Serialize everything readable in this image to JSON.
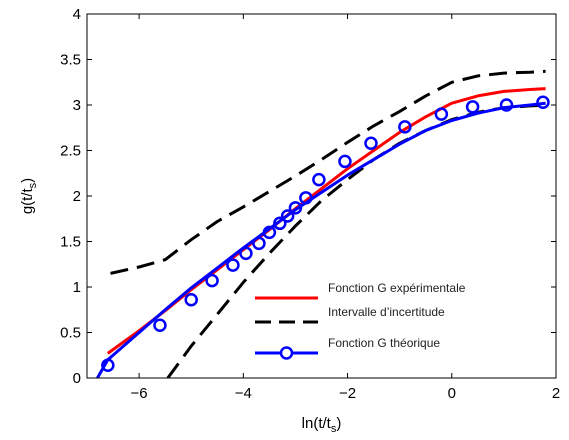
{
  "chart_data": {
    "type": "line",
    "title": "",
    "xlabel": {
      "base": "ln(t/t",
      "sub": "s",
      "tail": ")"
    },
    "ylabel": {
      "base": "g(t/t",
      "sub": "s",
      "tail": ")"
    },
    "xlim": [
      -7,
      2
    ],
    "ylim": [
      0,
      4
    ],
    "xticks": [
      -6,
      -4,
      -2,
      0,
      2
    ],
    "yticks": [
      0,
      0.5,
      1,
      1.5,
      2,
      2.5,
      3,
      3.5,
      4
    ],
    "xtick_labels": [
      "−6",
      "−4",
      "−2",
      "0",
      "2"
    ],
    "ytick_labels": [
      "0",
      "0.5",
      "1",
      "1.5",
      "2",
      "2.5",
      "3",
      "3.5",
      "4"
    ],
    "grid": false,
    "legend_position": "bottom-right",
    "series": [
      {
        "name": "Fonction G expérimentale",
        "color": "#ff0000",
        "style": "solid",
        "x": [
          -6.6,
          -6.0,
          -5.5,
          -5.0,
          -4.5,
          -4.0,
          -3.5,
          -3.0,
          -2.5,
          -2.0,
          -1.5,
          -1.0,
          -0.5,
          0.0,
          0.5,
          1.0,
          1.5,
          1.8
        ],
        "y": [
          0.27,
          0.52,
          0.74,
          0.97,
          1.19,
          1.41,
          1.63,
          1.86,
          2.08,
          2.3,
          2.5,
          2.7,
          2.87,
          3.02,
          3.1,
          3.15,
          3.17,
          3.18
        ]
      },
      {
        "name": "Intervalle d’incertitude",
        "color": "#000000",
        "style": "dashed",
        "x": [
          -6.55,
          -6.0,
          -5.5,
          -5.0,
          -4.5,
          -4.0,
          -3.5,
          -3.0,
          -2.5,
          -2.0,
          -1.5,
          -1.0,
          -0.5,
          0.0,
          0.5,
          1.0,
          1.5,
          1.8
        ],
        "y": [
          1.15,
          1.22,
          1.3,
          1.52,
          1.72,
          1.88,
          2.05,
          2.22,
          2.4,
          2.59,
          2.77,
          2.93,
          3.1,
          3.25,
          3.32,
          3.35,
          3.36,
          3.37
        ]
      },
      {
        "name": "",
        "color": "#000000",
        "style": "dashed",
        "x": [
          -5.45,
          -5.0,
          -4.5,
          -4.0,
          -3.5,
          -3.0,
          -2.5,
          -2.0,
          -1.5,
          -1.0,
          -0.5,
          0.0,
          0.5,
          1.0,
          1.5,
          1.8
        ],
        "y": [
          0.0,
          0.35,
          0.7,
          1.05,
          1.37,
          1.67,
          1.95,
          2.18,
          2.4,
          2.58,
          2.72,
          2.84,
          2.92,
          2.97,
          2.99,
          3.0
        ]
      },
      {
        "name": "Fonction G théorique",
        "color": "#0000ff",
        "style": "solid-markers",
        "x": [
          -6.8,
          -6.6,
          -6.0,
          -5.5,
          -5.0,
          -4.5,
          -4.0,
          -3.5,
          -3.0,
          -2.5,
          -2.0,
          -1.5,
          -1.0,
          -0.5,
          0.0,
          0.5,
          1.0,
          1.5,
          1.8
        ],
        "y": [
          0.0,
          0.2,
          0.5,
          0.75,
          0.99,
          1.21,
          1.43,
          1.64,
          1.85,
          2.04,
          2.23,
          2.4,
          2.57,
          2.72,
          2.83,
          2.91,
          2.97,
          3.0,
          3.02
        ],
        "markers": {
          "x": [
            -6.6,
            -5.6,
            -5.0,
            -4.6,
            -4.2,
            -3.95,
            -3.7,
            -3.5,
            -3.3,
            -3.15,
            -3.0,
            -2.8,
            -2.55,
            -2.05,
            -1.55,
            -0.9,
            -0.2,
            0.4,
            1.05,
            1.75
          ],
          "y": [
            0.14,
            0.58,
            0.86,
            1.07,
            1.24,
            1.37,
            1.48,
            1.6,
            1.7,
            1.78,
            1.87,
            1.98,
            2.18,
            2.38,
            2.58,
            2.76,
            2.9,
            2.98,
            3.0,
            3.03
          ]
        }
      }
    ]
  }
}
